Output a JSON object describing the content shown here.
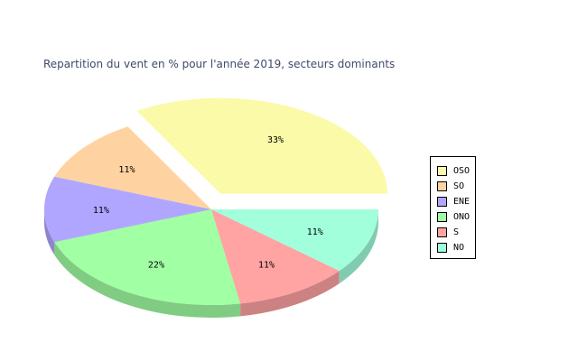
{
  "chart_data": {
    "type": "pie",
    "title": "Repartition du vent en % pour l'année 2019, secteurs dominants",
    "slices": [
      {
        "name": "OSO",
        "value": 33,
        "label": "33%",
        "color": "#fafaa8",
        "exploded": true
      },
      {
        "name": "SO",
        "value": 11,
        "label": "11%",
        "color": "#ffd3a1",
        "exploded": false
      },
      {
        "name": "ENE",
        "value": 11,
        "label": "11%",
        "color": "#b1a6ff",
        "exploded": false
      },
      {
        "name": "ONO",
        "value": 22,
        "label": "22%",
        "color": "#a1ffa4",
        "exploded": false
      },
      {
        "name": "S",
        "value": 11,
        "label": "11%",
        "color": "#ffa3a3",
        "exploded": false
      },
      {
        "name": "NO",
        "value": 11,
        "label": "11%",
        "color": "#a1ffdc",
        "exploded": false
      }
    ],
    "legend": {
      "position": "right"
    },
    "style": "3d"
  }
}
